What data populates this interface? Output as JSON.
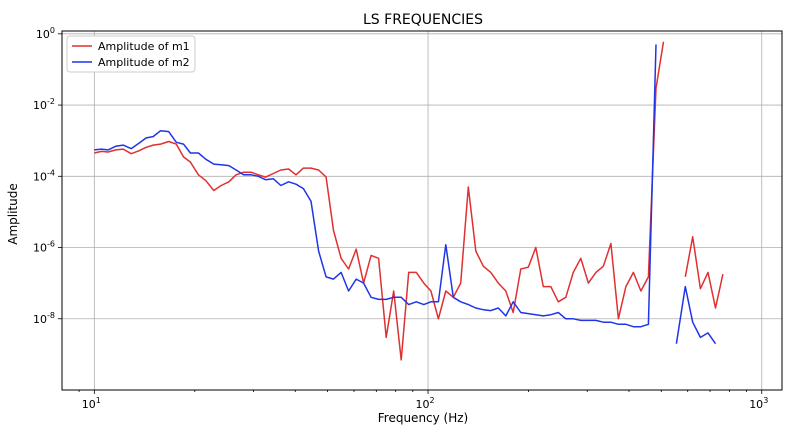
{
  "chart_data": {
    "type": "line",
    "title": "LS FREQUENCIES",
    "xlabel": "Frequency (Hz)",
    "ylabel": "Amplitude",
    "xscale": "log",
    "yscale": "log",
    "xlim": [
      8,
      1150
    ],
    "ylim": [
      1e-10,
      1.2
    ],
    "x_ticks": [
      {
        "value": 10,
        "label": "10",
        "sup": "1"
      },
      {
        "value": 100,
        "label": "10",
        "sup": "2"
      },
      {
        "value": 1000,
        "label": "10",
        "sup": "3"
      }
    ],
    "y_ticks": [
      {
        "value": 1,
        "label": "10",
        "sup": "0"
      },
      {
        "value": 0.01,
        "label": "10",
        "sup": "-2"
      },
      {
        "value": 0.0001,
        "label": "10",
        "sup": "-4"
      },
      {
        "value": 1e-06,
        "label": "10",
        "sup": "-6"
      },
      {
        "value": 1e-08,
        "label": "10",
        "sup": "-8"
      }
    ],
    "grid": true,
    "legend_position": "top-left",
    "series": [
      {
        "name": "Amplitude of m1",
        "color": "#e03030",
        "points": [
          [
            10,
            0.00045
          ],
          [
            10.5,
            0.0005
          ],
          [
            11,
            0.00048
          ],
          [
            11.6,
            0.00055
          ],
          [
            12.2,
            0.00058
          ],
          [
            12.9,
            0.00043
          ],
          [
            13.6,
            0.00052
          ],
          [
            14.3,
            0.00065
          ],
          [
            15,
            0.00075
          ],
          [
            15.8,
            0.0008
          ],
          [
            16.7,
            0.00095
          ],
          [
            17.6,
            0.0008
          ],
          [
            18.5,
            0.00035
          ],
          [
            19.4,
            0.00025
          ],
          [
            20.5,
            0.00011
          ],
          [
            21.6,
            7.5e-05
          ],
          [
            22.8,
            4e-05
          ],
          [
            24,
            5.5e-05
          ],
          [
            25.3,
            7e-05
          ],
          [
            26.6,
            0.00011
          ],
          [
            28,
            0.00013
          ],
          [
            29.5,
            0.00013
          ],
          [
            31,
            0.00011
          ],
          [
            32.6,
            9.5e-05
          ],
          [
            34.4,
            0.00012
          ],
          [
            36.2,
            0.00015
          ],
          [
            38.2,
            0.00016
          ],
          [
            40.2,
            0.00011
          ],
          [
            42.3,
            0.00017
          ],
          [
            44.6,
            0.00017
          ],
          [
            47,
            0.00015
          ],
          [
            49.5,
            9.5e-05
          ],
          [
            52.1,
            3e-06
          ],
          [
            54.9,
            5e-07
          ],
          [
            57.8,
            2.5e-07
          ],
          [
            60.9,
            9e-07
          ],
          [
            64.1,
            1e-07
          ],
          [
            67.5,
            6e-07
          ],
          [
            71.1,
            5e-07
          ],
          [
            74.9,
            3e-09
          ],
          [
            78.9,
            6e-08
          ],
          [
            83.1,
            7e-10
          ],
          [
            87.5,
            2e-07
          ],
          [
            92.2,
            2e-07
          ],
          [
            97.1,
            1e-07
          ],
          [
            102,
            6e-08
          ],
          [
            107.4,
            1e-08
          ],
          [
            113,
            6e-08
          ],
          [
            119,
            4e-08
          ],
          [
            125.3,
            1e-07
          ],
          [
            132,
            5e-05
          ],
          [
            139,
            8e-07
          ],
          [
            146.4,
            3e-07
          ],
          [
            154.2,
            2e-07
          ],
          [
            162.4,
            1e-07
          ],
          [
            171,
            6e-08
          ],
          [
            180,
            1.5e-08
          ],
          [
            189.6,
            2.5e-07
          ],
          [
            199.7,
            2.8e-07
          ],
          [
            210.3,
            1e-06
          ],
          [
            221.5,
            8e-08
          ],
          [
            233.3,
            8e-08
          ],
          [
            245.7,
            3e-08
          ],
          [
            258.8,
            4e-08
          ],
          [
            272.5,
            2e-07
          ],
          [
            287,
            5e-07
          ],
          [
            302.3,
            1e-07
          ],
          [
            318.4,
            2e-07
          ],
          [
            335.3,
            3e-07
          ],
          [
            353.1,
            1.3e-06
          ],
          [
            371.9,
            1e-08
          ],
          [
            391.7,
            8e-08
          ],
          [
            412.5,
            2e-07
          ],
          [
            434.5,
            6e-08
          ],
          [
            457.6,
            1.5e-07
          ],
          [
            482,
            0.03
          ],
          [
            507.6,
            0.6
          ],
          [
            555,
            null
          ],
          [
            590,
            1.5e-07
          ],
          [
            621,
            2e-06
          ],
          [
            655,
            7e-08
          ],
          [
            690,
            2e-07
          ],
          [
            727,
            2e-08
          ],
          [
            765,
            1.8e-07
          ]
        ]
      },
      {
        "name": "Amplitude of m2",
        "color": "#1f35e8",
        "points": [
          [
            10,
            0.00055
          ],
          [
            10.5,
            0.00058
          ],
          [
            11,
            0.00055
          ],
          [
            11.6,
            0.0007
          ],
          [
            12.2,
            0.00075
          ],
          [
            12.9,
            0.0006
          ],
          [
            13.6,
            0.00085
          ],
          [
            14.3,
            0.0012
          ],
          [
            15,
            0.0013
          ],
          [
            15.8,
            0.0019
          ],
          [
            16.7,
            0.0018
          ],
          [
            17.6,
            0.0009
          ],
          [
            18.5,
            0.0008
          ],
          [
            19.4,
            0.00045
          ],
          [
            20.5,
            0.00045
          ],
          [
            21.6,
            0.0003
          ],
          [
            22.8,
            0.00022
          ],
          [
            24,
            0.00021
          ],
          [
            25.3,
            0.0002
          ],
          [
            26.6,
            0.00015
          ],
          [
            28,
            0.00011
          ],
          [
            29.5,
            0.00011
          ],
          [
            31,
            0.0001
          ],
          [
            32.6,
            8e-05
          ],
          [
            34.4,
            8.5e-05
          ],
          [
            36.2,
            5.5e-05
          ],
          [
            38.2,
            7e-05
          ],
          [
            40.2,
            6e-05
          ],
          [
            42.3,
            4.5e-05
          ],
          [
            44.6,
            2e-05
          ],
          [
            47,
            8e-07
          ],
          [
            49.5,
            1.5e-07
          ],
          [
            52.1,
            1.3e-07
          ],
          [
            54.9,
            2e-07
          ],
          [
            57.8,
            6e-08
          ],
          [
            60.9,
            1.3e-07
          ],
          [
            64.1,
            1e-07
          ],
          [
            67.5,
            4e-08
          ],
          [
            71.1,
            3.5e-08
          ],
          [
            74.9,
            3.5e-08
          ],
          [
            78.9,
            4e-08
          ],
          [
            83.1,
            4e-08
          ],
          [
            87.5,
            2.5e-08
          ],
          [
            92.2,
            3e-08
          ],
          [
            97.1,
            2.5e-08
          ],
          [
            102,
            3e-08
          ],
          [
            107.4,
            3e-08
          ],
          [
            113,
            1.2e-06
          ],
          [
            119,
            4e-08
          ],
          [
            125.3,
            3e-08
          ],
          [
            132,
            2.5e-08
          ],
          [
            139,
            2e-08
          ],
          [
            146.4,
            1.8e-08
          ],
          [
            154.2,
            1.7e-08
          ],
          [
            162.4,
            2e-08
          ],
          [
            171,
            1.2e-08
          ],
          [
            180,
            3e-08
          ],
          [
            189.6,
            1.5e-08
          ],
          [
            199.7,
            1.4e-08
          ],
          [
            210.3,
            1.3e-08
          ],
          [
            221.5,
            1.2e-08
          ],
          [
            233.3,
            1.3e-08
          ],
          [
            245.7,
            1.5e-08
          ],
          [
            258.8,
            1e-08
          ],
          [
            272.5,
            1e-08
          ],
          [
            287,
            9e-09
          ],
          [
            302.3,
            9e-09
          ],
          [
            318.4,
            9e-09
          ],
          [
            335.3,
            8e-09
          ],
          [
            353.1,
            8e-09
          ],
          [
            371.9,
            7e-09
          ],
          [
            391.7,
            7e-09
          ],
          [
            412.5,
            6e-09
          ],
          [
            434.5,
            6e-09
          ],
          [
            457.6,
            7e-09
          ],
          [
            482,
            0.5
          ],
          [
            507.6,
            null
          ],
          [
            555,
            2e-09
          ],
          [
            590,
            8e-08
          ],
          [
            621,
            8e-09
          ],
          [
            655,
            3e-09
          ],
          [
            690,
            4e-09
          ],
          [
            727,
            2e-09
          ]
        ]
      }
    ]
  }
}
